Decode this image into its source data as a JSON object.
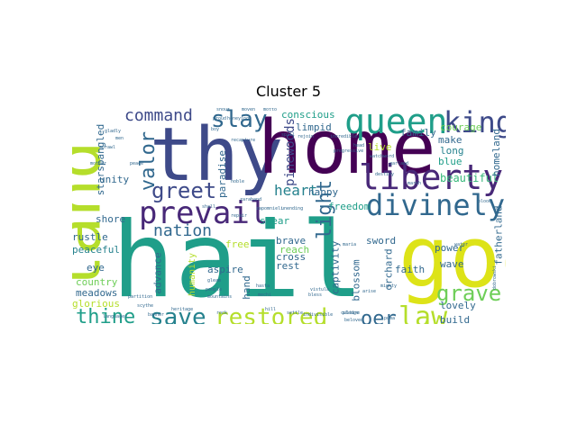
{
  "figure": {
    "title": "Cluster 5"
  },
  "words": {
    "hail": "hail",
    "thy": "thy",
    "home": "home",
    "god": "god",
    "land": "land",
    "queen": "queen",
    "king": "king",
    "liberty": "liberty",
    "divinely": "divinely",
    "prevail": "prevail",
    "greet": "greet",
    "slay": "slay",
    "command": "command",
    "valor": "valor",
    "save": "save",
    "restored": "restored",
    "law": "law",
    "thine": "thine",
    "grave": "grave",
    "nation": "nation",
    "light": "light",
    "heart": "heart",
    "oer": "oer",
    "pinewoods": "pinewoods",
    "conscious": "conscious",
    "limpid": "limpid",
    "courage": "courage",
    "family": "family",
    "make": "make",
    "long": "long",
    "blue": "blue",
    "beautiful": "beautiful",
    "homeland": "homeland",
    "fatherland": "fatherland",
    "freedom": "freedom",
    "happy": "happy",
    "swear": "swear",
    "paradise": "paradise",
    "starspangled": "starspangled",
    "unity": "unity",
    "shore": "shore",
    "rustle": "rustle",
    "peaceful": "peaceful",
    "eye": "eye",
    "country": "country",
    "meadows": "meadows",
    "glorious": "glorious",
    "advance": "advance",
    "humanity": "humanity",
    "aspire": "aspire",
    "hand": "hand",
    "brave": "brave",
    "cross": "cross",
    "rest": "rest",
    "reach": "reach",
    "captivity": "captivity",
    "faith": "faith",
    "wave": "wave",
    "power": "power",
    "orchard": "orchard",
    "blossom": "blossom",
    "sword": "sword",
    "live": "live",
    "lovely": "lovely",
    "build": "build",
    "free": "free",
    "mighty": "mighty",
    "heritage": "heritage",
    "banner": "banner",
    "scythe": "scythe",
    "people": "people",
    "mountains": "mountains",
    "rock": "rock",
    "partition": "partition",
    "languages": "languages",
    "settle": "settle",
    "indivisible": "indivisible",
    "beloved": "beloved",
    "culture": "culture",
    "destiny": "destiny",
    "garland": "garland",
    "march": "march",
    "progressive": "progressive",
    "incredible": "incredible",
    "rejoin": "rejoin",
    "pledge": "pledge",
    "head": "head",
    "watchword": "watchword",
    "shout": "shout",
    "moven": "moven",
    "motto": "motto",
    "proud": "proud",
    "honeying": "honeying",
    "boy": "boy",
    "men": "men",
    "sprawl": "sprawl",
    "gladly": "gladly",
    "mother": "mother",
    "peace": "peace",
    "shall": "shall",
    "recapture": "recapture",
    "repair": "repair",
    "gleam": "gleam",
    "noble": "noble",
    "spill": "spill",
    "arise": "arise",
    "unending": "unending",
    "vistula": "vistula",
    "water": "water",
    "hill": "hill",
    "puma": "puma",
    "maria": "maria",
    "bless": "bless",
    "dobrowski": "dobrowski",
    "blood": "blood",
    "hasta": "hasta",
    "mechi": "mechi",
    "zaraband": "zaraband",
    "zapomnieli": "zapomnieli"
  },
  "palette": {
    "dark_purple": "#440154",
    "purple": "#482878",
    "indigo": "#3e4a89",
    "blue": "#31688e",
    "teal_blue": "#26828e",
    "teal": "#1f9e89",
    "green": "#35b779",
    "light_green": "#6ece58",
    "yellow_green": "#b5de2b",
    "yellow": "#dde318"
  }
}
